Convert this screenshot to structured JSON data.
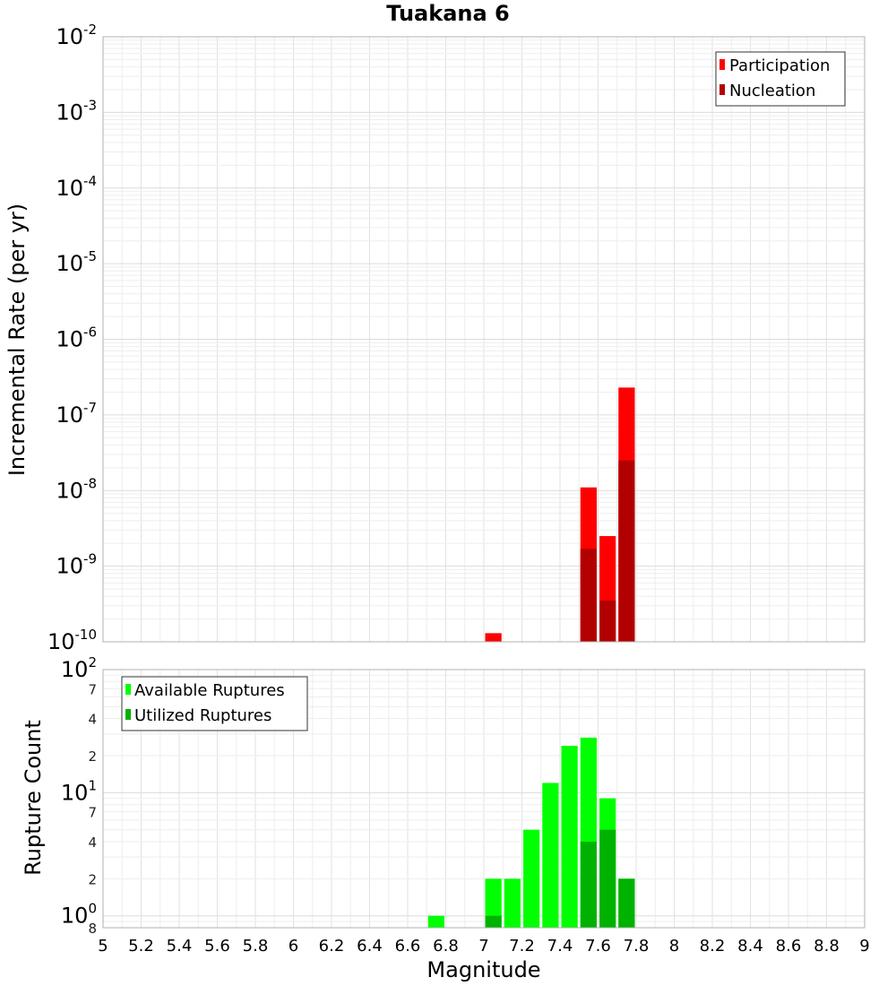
{
  "chart_data": [
    {
      "type": "bar",
      "title": "Tuakana 6",
      "xlabel": "",
      "ylabel": "Incremental Rate (per yr)",
      "yscale": "log",
      "xlim": [
        5,
        9
      ],
      "ylim": [
        1e-10,
        0.01
      ],
      "grid": true,
      "legend_position": "top-right",
      "bin_width": 0.1,
      "y_ticks": [
        {
          "base": "10",
          "exp": "-10",
          "value": 1e-10
        },
        {
          "base": "10",
          "exp": "-9",
          "value": 1e-09
        },
        {
          "base": "10",
          "exp": "-8",
          "value": 1e-08
        },
        {
          "base": "10",
          "exp": "-7",
          "value": 1e-07
        },
        {
          "base": "10",
          "exp": "-6",
          "value": 1e-06
        },
        {
          "base": "10",
          "exp": "-5",
          "value": 1e-05
        },
        {
          "base": "10",
          "exp": "-4",
          "value": 0.0001
        },
        {
          "base": "10",
          "exp": "-3",
          "value": 0.001
        },
        {
          "base": "10",
          "exp": "-2",
          "value": 0.01
        }
      ],
      "series": [
        {
          "name": "Participation",
          "color": "#ff0000",
          "x": [
            7.05,
            7.55,
            7.65,
            7.75
          ],
          "values": [
            1.3e-10,
            1.1e-08,
            2.5e-09,
            2.3e-07
          ]
        },
        {
          "name": "Nucleation",
          "color": "#b20000",
          "x": [
            7.55,
            7.65,
            7.75
          ],
          "values": [
            1.7e-09,
            3.5e-10,
            2.5e-08
          ]
        }
      ]
    },
    {
      "type": "bar",
      "title": "",
      "xlabel": "Magnitude",
      "ylabel": "Rupture Count",
      "yscale": "log",
      "xlim": [
        5,
        9
      ],
      "ylim": [
        0.8,
        100
      ],
      "grid": true,
      "legend_position": "top-left",
      "bin_width": 0.1,
      "x_ticks": [
        "5",
        "5.2",
        "5.4",
        "5.6",
        "5.8",
        "6",
        "6.2",
        "6.4",
        "6.6",
        "6.8",
        "7",
        "7.2",
        "7.4",
        "7.6",
        "7.8",
        "8",
        "8.2",
        "8.4",
        "8.6",
        "8.8",
        "9"
      ],
      "y_major_ticks": [
        {
          "base": "10",
          "exp": "0",
          "value": 1
        },
        {
          "base": "10",
          "exp": "1",
          "value": 10
        },
        {
          "base": "10",
          "exp": "2",
          "value": 100
        }
      ],
      "y_minor_ticks": [
        {
          "label": "8",
          "value": 0.8
        },
        {
          "label": "2",
          "value": 2
        },
        {
          "label": "4",
          "value": 4
        },
        {
          "label": "7",
          "value": 7
        },
        {
          "label": "2",
          "value": 20
        },
        {
          "label": "4",
          "value": 40
        },
        {
          "label": "7",
          "value": 70
        }
      ],
      "series": [
        {
          "name": "Available Ruptures",
          "color": "#00ff00",
          "x": [
            6.75,
            7.05,
            7.15,
            7.25,
            7.35,
            7.45,
            7.55,
            7.65,
            7.75
          ],
          "values": [
            1,
            2,
            2,
            5,
            12,
            24,
            28,
            9,
            2
          ]
        },
        {
          "name": "Utilized Ruptures",
          "color": "#00b200",
          "x": [
            7.05,
            7.55,
            7.65,
            7.75
          ],
          "values": [
            1,
            4,
            5,
            2
          ]
        }
      ]
    }
  ]
}
